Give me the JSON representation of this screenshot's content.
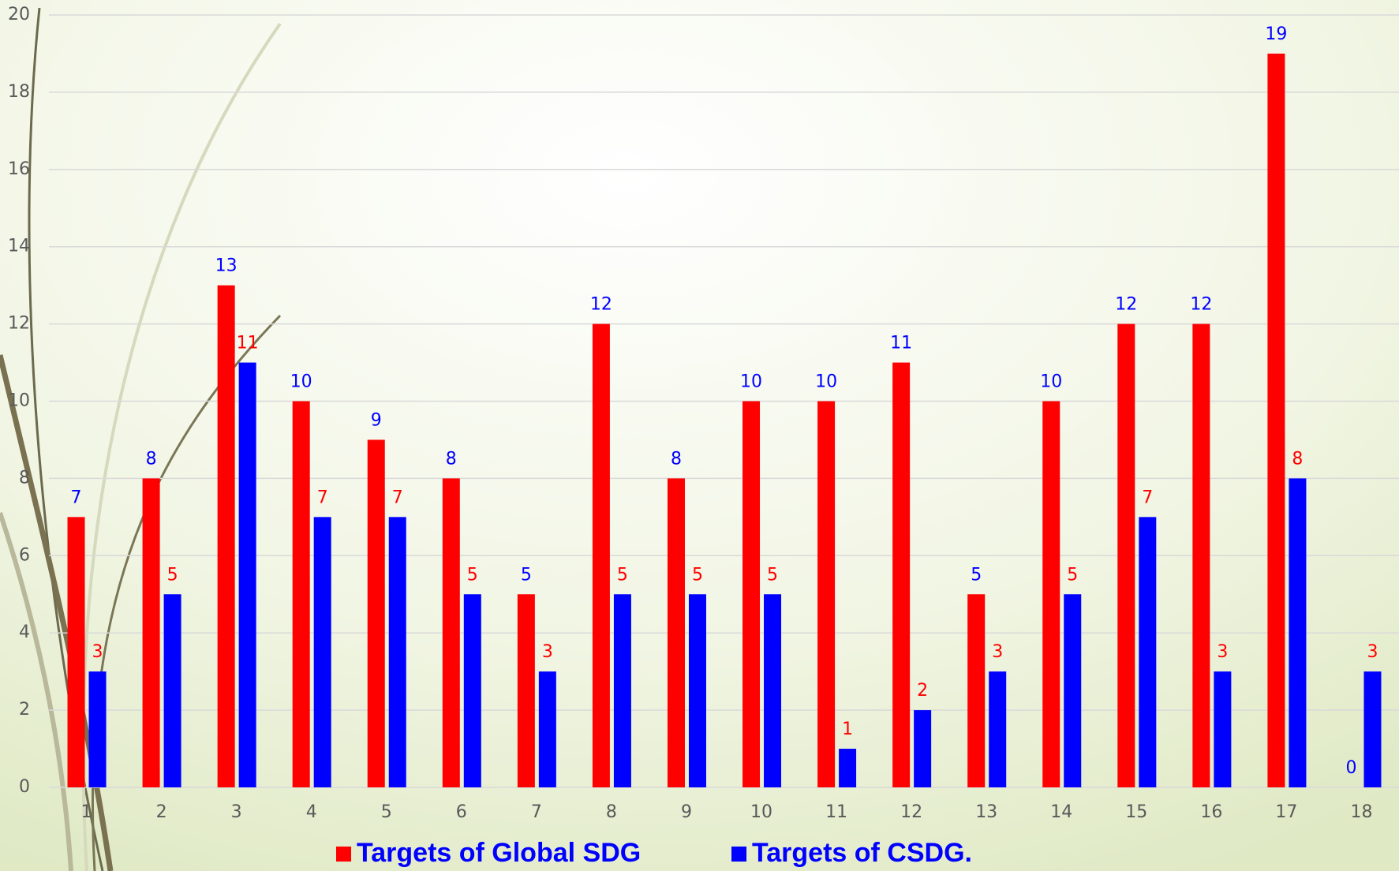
{
  "chart_data": {
    "type": "bar",
    "categories": [
      "1",
      "2",
      "3",
      "4",
      "5",
      "6",
      "7",
      "8",
      "9",
      "10",
      "11",
      "12",
      "13",
      "14",
      "15",
      "16",
      "17",
      "18"
    ],
    "series": [
      {
        "name": "Targets of Global SDG",
        "color": "#ff0000",
        "label_color": "#0000ff",
        "values": [
          7,
          8,
          13,
          10,
          9,
          8,
          5,
          12,
          8,
          10,
          10,
          11,
          5,
          10,
          12,
          12,
          19,
          0
        ]
      },
      {
        "name": "Targets of CSDG.",
        "color": "#0000ff",
        "label_color": "#ff0000",
        "values": [
          3,
          5,
          11,
          7,
          7,
          5,
          3,
          5,
          5,
          5,
          1,
          2,
          3,
          5,
          7,
          3,
          8,
          3
        ]
      }
    ],
    "ylim": [
      0,
      20
    ],
    "yticks": [
      0,
      2,
      4,
      6,
      8,
      10,
      12,
      14,
      16,
      18,
      20
    ],
    "grid": true,
    "legend": "bottom"
  }
}
